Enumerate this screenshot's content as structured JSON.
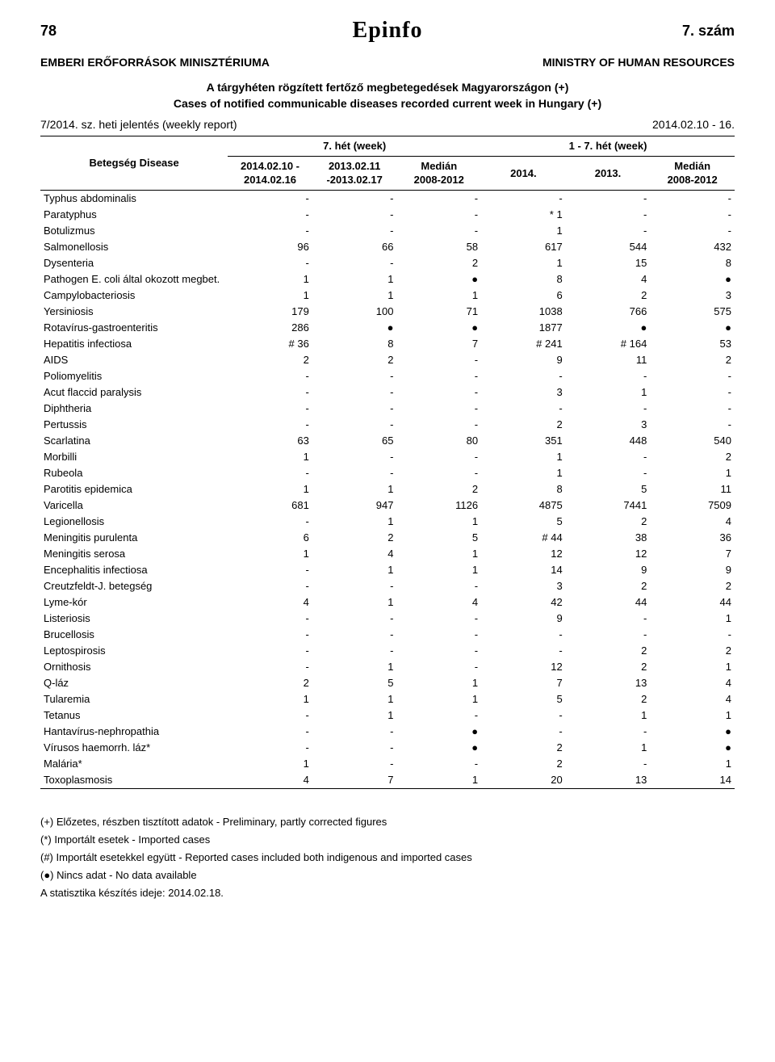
{
  "header": {
    "page_number_left": "78",
    "logo_text": "Epinfo",
    "page_number_right": "7. szám",
    "institution_left": "EMBERI ERŐFORRÁSOK MINISZTÉRIUMA",
    "institution_right": "MINISTRY OF HUMAN RESOURCES",
    "subtitle1": "A tárgyhéten rögzített fertőző megbetegedések Magyarországon (+)",
    "subtitle2": "Cases of notified communicable diseases recorded current week in Hungary (+)",
    "report_left": "7/2014. sz. heti jelentés (weekly report)",
    "report_right": "2014.02.10 - 16."
  },
  "table": {
    "corner_label": "Betegség Disease",
    "week_group_left": "7. hét (week)",
    "week_group_right": "1 - 7. hét (week)",
    "col1": {
      "l1": "2014.02.10 -",
      "l2": "2014.02.16"
    },
    "col2": {
      "l1": "2013.02.11",
      "l2": "-2013.02.17"
    },
    "col3": {
      "l1": "Medián",
      "l2": "2008-2012"
    },
    "col4": {
      "l1": "2014.",
      "l2": ""
    },
    "col5": {
      "l1": "2013.",
      "l2": ""
    },
    "col6": {
      "l1": "Medián",
      "l2": "2008-2012"
    },
    "rows": [
      {
        "name": "Typhus abdominalis",
        "c": [
          "-",
          "-",
          "-",
          "-",
          "-",
          "-"
        ]
      },
      {
        "name": "Paratyphus",
        "c": [
          "-",
          "-",
          "-",
          "* 1",
          "-",
          "-"
        ]
      },
      {
        "name": "Botulizmus",
        "c": [
          "-",
          "-",
          "-",
          "1",
          "-",
          "-"
        ]
      },
      {
        "name": "Salmonellosis",
        "c": [
          "96",
          "66",
          "58",
          "617",
          "544",
          "432"
        ]
      },
      {
        "name": "Dysenteria",
        "c": [
          "-",
          "-",
          "2",
          "1",
          "15",
          "8"
        ]
      },
      {
        "name": "Pathogen E. coli által okozott megbet.",
        "c": [
          "1",
          "1",
          "●",
          "8",
          "4",
          "●"
        ]
      },
      {
        "name": "Campylobacteriosis",
        "c": [
          "1",
          "1",
          "1",
          "6",
          "2",
          "3"
        ]
      },
      {
        "name": "Yersiniosis",
        "c": [
          "179",
          "100",
          "71",
          "1038",
          "766",
          "575"
        ]
      },
      {
        "name": "Rotavírus-gastroenteritis",
        "c": [
          "286",
          "●",
          "●",
          "1877",
          "●",
          "●"
        ]
      },
      {
        "name": "Hepatitis infectiosa",
        "c": [
          "# 36",
          "8",
          "7",
          "# 241",
          "# 164",
          "53"
        ]
      },
      {
        "name": "AIDS",
        "c": [
          "2",
          "2",
          "-",
          "9",
          "11",
          "2"
        ]
      },
      {
        "name": "Poliomyelitis",
        "c": [
          "-",
          "-",
          "-",
          "-",
          "-",
          "-"
        ]
      },
      {
        "name": "Acut flaccid paralysis",
        "c": [
          "-",
          "-",
          "-",
          "3",
          "1",
          "-"
        ]
      },
      {
        "name": "Diphtheria",
        "c": [
          "-",
          "-",
          "-",
          "-",
          "-",
          "-"
        ]
      },
      {
        "name": "Pertussis",
        "c": [
          "-",
          "-",
          "-",
          "2",
          "3",
          "-"
        ]
      },
      {
        "name": "Scarlatina",
        "c": [
          "63",
          "65",
          "80",
          "351",
          "448",
          "540"
        ]
      },
      {
        "name": "Morbilli",
        "c": [
          "1",
          "-",
          "-",
          "1",
          "-",
          "2"
        ]
      },
      {
        "name": "Rubeola",
        "c": [
          "-",
          "-",
          "-",
          "1",
          "-",
          "1"
        ]
      },
      {
        "name": "Parotitis epidemica",
        "c": [
          "1",
          "1",
          "2",
          "8",
          "5",
          "11"
        ]
      },
      {
        "name": "Varicella",
        "c": [
          "681",
          "947",
          "1126",
          "4875",
          "7441",
          "7509"
        ]
      },
      {
        "name": "Legionellosis",
        "c": [
          "-",
          "1",
          "1",
          "5",
          "2",
          "4"
        ]
      },
      {
        "name": "Meningitis purulenta",
        "c": [
          "6",
          "2",
          "5",
          "# 44",
          "38",
          "36"
        ]
      },
      {
        "name": "Meningitis serosa",
        "c": [
          "1",
          "4",
          "1",
          "12",
          "12",
          "7"
        ]
      },
      {
        "name": "Encephalitis infectiosa",
        "c": [
          "-",
          "1",
          "1",
          "14",
          "9",
          "9"
        ]
      },
      {
        "name": "Creutzfeldt-J. betegség",
        "c": [
          "-",
          "-",
          "-",
          "3",
          "2",
          "2"
        ]
      },
      {
        "name": "Lyme-kór",
        "c": [
          "4",
          "1",
          "4",
          "42",
          "44",
          "44"
        ]
      },
      {
        "name": "Listeriosis",
        "c": [
          "-",
          "-",
          "-",
          "9",
          "-",
          "1"
        ]
      },
      {
        "name": "Brucellosis",
        "c": [
          "-",
          "-",
          "-",
          "-",
          "-",
          "-"
        ]
      },
      {
        "name": "Leptospirosis",
        "c": [
          "-",
          "-",
          "-",
          "-",
          "2",
          "2"
        ]
      },
      {
        "name": "Ornithosis",
        "c": [
          "-",
          "1",
          "-",
          "12",
          "2",
          "1"
        ]
      },
      {
        "name": "Q-láz",
        "c": [
          "2",
          "5",
          "1",
          "7",
          "13",
          "4"
        ]
      },
      {
        "name": "Tularemia",
        "c": [
          "1",
          "1",
          "1",
          "5",
          "2",
          "4"
        ]
      },
      {
        "name": "Tetanus",
        "c": [
          "-",
          "1",
          "-",
          "-",
          "1",
          "1"
        ]
      },
      {
        "name": "Hantavírus-nephropathia",
        "c": [
          "-",
          "-",
          "●",
          "-",
          "-",
          "●"
        ]
      },
      {
        "name": "Vírusos haemorrh. láz*",
        "c": [
          "-",
          "-",
          "●",
          "2",
          "1",
          "●"
        ]
      },
      {
        "name": "Malária*",
        "c": [
          "1",
          "-",
          "-",
          "2",
          "-",
          "1"
        ]
      },
      {
        "name": "Toxoplasmosis",
        "c": [
          "4",
          "7",
          "1",
          "20",
          "13",
          "14"
        ]
      }
    ]
  },
  "footer": {
    "l1": "(+) Előzetes, részben tisztított adatok - Preliminary, partly corrected figures",
    "l2": "(*) Importált esetek - Imported cases",
    "l3": "(#) Importált esetekkel együtt - Reported cases included both indigenous and imported cases",
    "l4": "(●) Nincs adat - No data available",
    "l5": "A statisztika készítés ideje: 2014.02.18."
  }
}
